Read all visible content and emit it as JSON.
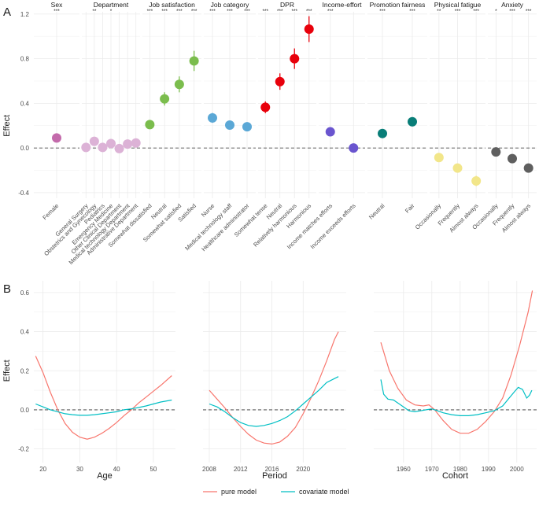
{
  "panels": {
    "a_label": "A",
    "b_label": "B"
  },
  "legend": {
    "pure": "pure model",
    "covariate": "covariate model"
  },
  "chart_data": [
    {
      "type": "scatter",
      "panel": "A",
      "ylabel": "Effect",
      "ylim": [
        -0.45,
        1.22
      ],
      "yticks": [
        "-0.4",
        "0.0",
        "0.4",
        "0.8",
        "1.2"
      ],
      "reference_line": 0,
      "facets": [
        {
          "title": "Sex",
          "color": "#c36aab",
          "items": [
            {
              "label": "Female",
              "value": 0.09,
              "sig": "***"
            }
          ]
        },
        {
          "title": "Department",
          "color": "#dcb2d6",
          "items": [
            {
              "label": "General Surgery",
              "value": 0.005,
              "sig": ""
            },
            {
              "label": "Obstetrics and Gynecology",
              "value": 0.06,
              "sig": "**"
            },
            {
              "label": "Pediatrics",
              "value": 0.005,
              "sig": ""
            },
            {
              "label": "Emergency Medicine",
              "value": 0.04,
              "sig": "*"
            },
            {
              "label": "Other Clinical Department",
              "value": -0.005,
              "sig": ""
            },
            {
              "label": "Medical technology Department",
              "value": 0.035,
              "sig": ""
            },
            {
              "label": "Administrative Department",
              "value": 0.045,
              "sig": ""
            }
          ]
        },
        {
          "title": "Job satisfaction",
          "color": "#7bbd4d",
          "items": [
            {
              "label": "Somewhat dissatisfied",
              "value": 0.21,
              "sig": "***"
            },
            {
              "label": "Neutral",
              "value": 0.44,
              "sig": "***"
            },
            {
              "label": "Somewhat satisfied",
              "value": 0.57,
              "sig": "***"
            },
            {
              "label": "Satisfied",
              "value": 0.78,
              "sig": "***"
            }
          ]
        },
        {
          "title": "Job category",
          "color": "#5ba8d6",
          "items": [
            {
              "label": "Nurse",
              "value": 0.27,
              "sig": "***"
            },
            {
              "label": "Medical technology staff",
              "value": 0.205,
              "sig": "***"
            },
            {
              "label": "Healthcare administrator",
              "value": 0.19,
              "sig": "***"
            }
          ]
        },
        {
          "title": "DPR",
          "color": "#e8000b",
          "items": [
            {
              "label": "Somewhat tense",
              "value": 0.365,
              "sig": "***"
            },
            {
              "label": "Neutral",
              "value": 0.595,
              "sig": "***"
            },
            {
              "label": "Relatively harmonious",
              "value": 0.8,
              "sig": "***"
            },
            {
              "label": "Harmonious",
              "value": 1.065,
              "sig": "***"
            }
          ]
        },
        {
          "title": "Income-effort",
          "color": "#6a55cf",
          "items": [
            {
              "label": "Income matches efforts",
              "value": 0.145,
              "sig": "***"
            },
            {
              "label": "Income exceeds efforts",
              "value": 0.0,
              "sig": ""
            }
          ]
        },
        {
          "title": "Promotion fairness",
          "color": "#097e78",
          "items": [
            {
              "label": "Neutral",
              "value": 0.13,
              "sig": "***"
            },
            {
              "label": "Fair",
              "value": 0.235,
              "sig": "***"
            }
          ]
        },
        {
          "title": "Physical fatigue",
          "color": "#f2e68a",
          "items": [
            {
              "label": "Occasionally",
              "value": -0.085,
              "sig": "**"
            },
            {
              "label": "Frequently",
              "value": -0.18,
              "sig": "***"
            },
            {
              "label": "Almost always",
              "value": -0.295,
              "sig": "***"
            }
          ]
        },
        {
          "title": "Anxiety",
          "color": "#5f5f5f",
          "items": [
            {
              "label": "Occasionally",
              "value": -0.035,
              "sig": "*"
            },
            {
              "label": "Frequently",
              "value": -0.095,
              "sig": "***"
            },
            {
              "label": "Almost always",
              "value": -0.18,
              "sig": "***"
            }
          ]
        }
      ]
    },
    {
      "type": "line",
      "panel": "B",
      "ylabel": "Effect",
      "ylim": [
        -0.27,
        0.66
      ],
      "yticks": [
        "-0.2",
        "0.0",
        "0.2",
        "0.4",
        "0.6"
      ],
      "reference_line": 0,
      "series_names": [
        "pure model",
        "covariate model"
      ],
      "series_colors": [
        "#f8766d",
        "#00bfc4"
      ],
      "facets": [
        {
          "xlabel": "Age",
          "xlim": [
            17.5,
            56
          ],
          "xticks": [
            20,
            30,
            40,
            50
          ],
          "pure": [
            [
              18,
              0.275
            ],
            [
              20,
              0.19
            ],
            [
              22,
              0.09
            ],
            [
              24,
              0.0
            ],
            [
              26,
              -0.07
            ],
            [
              28,
              -0.115
            ],
            [
              30,
              -0.14
            ],
            [
              32,
              -0.15
            ],
            [
              34,
              -0.14
            ],
            [
              36,
              -0.12
            ],
            [
              38,
              -0.095
            ],
            [
              40,
              -0.065
            ],
            [
              42,
              -0.03
            ],
            [
              44,
              0.0
            ],
            [
              46,
              0.035
            ],
            [
              48,
              0.065
            ],
            [
              50,
              0.095
            ],
            [
              52,
              0.125
            ],
            [
              55,
              0.175
            ]
          ],
          "covariate": [
            [
              18,
              0.03
            ],
            [
              20,
              0.015
            ],
            [
              22,
              0.0
            ],
            [
              24,
              -0.01
            ],
            [
              26,
              -0.02
            ],
            [
              28,
              -0.025
            ],
            [
              30,
              -0.028
            ],
            [
              32,
              -0.028
            ],
            [
              34,
              -0.025
            ],
            [
              36,
              -0.02
            ],
            [
              38,
              -0.015
            ],
            [
              40,
              -0.01
            ],
            [
              42,
              0.0
            ],
            [
              44,
              0.005
            ],
            [
              46,
              0.012
            ],
            [
              48,
              0.02
            ],
            [
              50,
              0.03
            ],
            [
              52,
              0.04
            ],
            [
              55,
              0.05
            ]
          ]
        },
        {
          "xlabel": "Period",
          "xlim": [
            2007.2,
            2025.5
          ],
          "xticks": [
            2008,
            2012,
            2016,
            2020
          ],
          "pure": [
            [
              2008,
              0.1
            ],
            [
              2009,
              0.055
            ],
            [
              2010,
              0.01
            ],
            [
              2011,
              -0.04
            ],
            [
              2012,
              -0.085
            ],
            [
              2013,
              -0.125
            ],
            [
              2014,
              -0.155
            ],
            [
              2015,
              -0.17
            ],
            [
              2016,
              -0.175
            ],
            [
              2017,
              -0.165
            ],
            [
              2018,
              -0.135
            ],
            [
              2019,
              -0.09
            ],
            [
              2020,
              -0.02
            ],
            [
              2021,
              0.06
            ],
            [
              2022,
              0.15
            ],
            [
              2023,
              0.25
            ],
            [
              2024,
              0.36
            ],
            [
              2024.5,
              0.4
            ]
          ],
          "covariate": [
            [
              2008,
              0.03
            ],
            [
              2009,
              0.015
            ],
            [
              2010,
              -0.01
            ],
            [
              2011,
              -0.04
            ],
            [
              2012,
              -0.065
            ],
            [
              2013,
              -0.08
            ],
            [
              2014,
              -0.085
            ],
            [
              2015,
              -0.08
            ],
            [
              2016,
              -0.07
            ],
            [
              2017,
              -0.055
            ],
            [
              2018,
              -0.035
            ],
            [
              2019,
              -0.005
            ],
            [
              2020,
              0.03
            ],
            [
              2021,
              0.065
            ],
            [
              2022,
              0.1
            ],
            [
              2023,
              0.14
            ],
            [
              2024,
              0.16
            ],
            [
              2024.5,
              0.17
            ]
          ]
        },
        {
          "xlabel": "Cohort",
          "xlim": [
            1949.5,
            2007
          ],
          "xticks": [
            1960,
            1970,
            1980,
            1990,
            2000
          ],
          "pure": [
            [
              1952,
              0.345
            ],
            [
              1955,
              0.2
            ],
            [
              1958,
              0.11
            ],
            [
              1961,
              0.05
            ],
            [
              1964,
              0.025
            ],
            [
              1967,
              0.02
            ],
            [
              1969,
              0.025
            ],
            [
              1971,
              0.0
            ],
            [
              1974,
              -0.055
            ],
            [
              1977,
              -0.1
            ],
            [
              1980,
              -0.12
            ],
            [
              1983,
              -0.12
            ],
            [
              1986,
              -0.1
            ],
            [
              1989,
              -0.06
            ],
            [
              1992,
              -0.01
            ],
            [
              1995,
              0.06
            ],
            [
              1998,
              0.18
            ],
            [
              2001,
              0.33
            ],
            [
              2004,
              0.5
            ],
            [
              2005.5,
              0.61
            ]
          ],
          "covariate": [
            [
              1952,
              0.155
            ],
            [
              1953,
              0.08
            ],
            [
              1954.5,
              0.055
            ],
            [
              1956.5,
              0.05
            ],
            [
              1958,
              0.035
            ],
            [
              1960,
              0.015
            ],
            [
              1962,
              -0.005
            ],
            [
              1964,
              -0.01
            ],
            [
              1966,
              -0.005
            ],
            [
              1968,
              0.0
            ],
            [
              1970,
              0.005
            ],
            [
              1972,
              -0.005
            ],
            [
              1974,
              -0.015
            ],
            [
              1977,
              -0.025
            ],
            [
              1980,
              -0.03
            ],
            [
              1983,
              -0.03
            ],
            [
              1986,
              -0.025
            ],
            [
              1989,
              -0.015
            ],
            [
              1992,
              -0.005
            ],
            [
              1995,
              0.02
            ],
            [
              1997,
              0.055
            ],
            [
              1999,
              0.09
            ],
            [
              2000.5,
              0.115
            ],
            [
              2002,
              0.105
            ],
            [
              2003.5,
              0.06
            ],
            [
              2004.5,
              0.075
            ],
            [
              2005.3,
              0.1
            ]
          ]
        }
      ]
    }
  ]
}
